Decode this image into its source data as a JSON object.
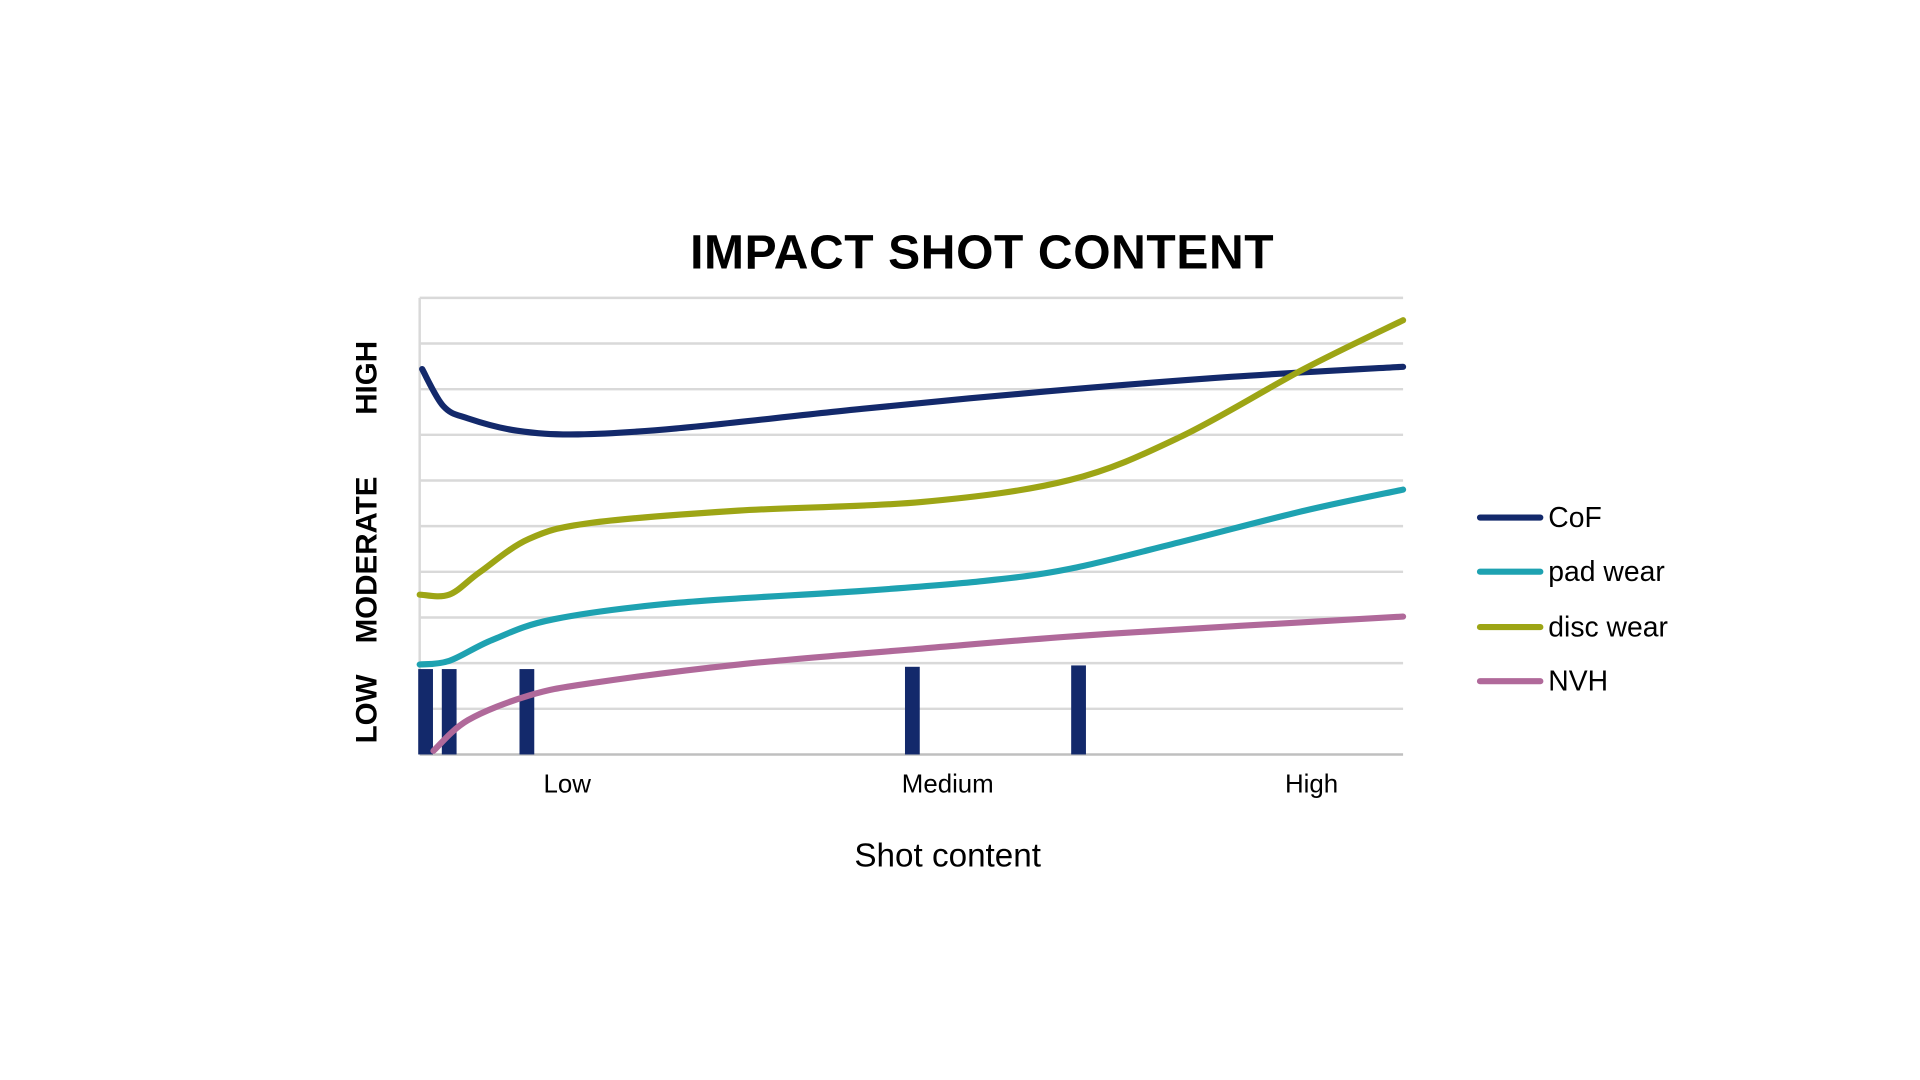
{
  "chart_data": {
    "type": "line",
    "title": "IMPACT SHOT CONTENT",
    "xlabel": "Shot content",
    "ylabel": "",
    "x_ticks": [
      {
        "label": "Low",
        "x": 15
      },
      {
        "label": "Medium",
        "x": 53.7
      },
      {
        "label": "High",
        "x": 90.7
      }
    ],
    "y_categories": [
      {
        "label": "LOW",
        "from": 0,
        "to": 2
      },
      {
        "label": "MODERATE",
        "from": 2,
        "to": 6.5
      },
      {
        "label": "HIGH",
        "from": 6.5,
        "to": 10
      }
    ],
    "xlim": [
      0,
      100
    ],
    "ylim": [
      0,
      10
    ],
    "grid": true,
    "gridline_count": 10,
    "legend_position": "right",
    "series": [
      {
        "name": "CoF",
        "color": "#13296b",
        "x": [
          0.25,
          2.4,
          4.9,
          9.9,
          16.1,
          26.1,
          45,
          63.7,
          82.5,
          100
        ],
        "y": [
          8.44,
          7.63,
          7.36,
          7.09,
          7.01,
          7.14,
          7.57,
          7.95,
          8.27,
          8.49
        ]
      },
      {
        "name": "pad wear",
        "color": "#1ea2b1",
        "x": [
          0,
          3,
          7.4,
          13.6,
          26.2,
          44.9,
          57.4,
          66.2,
          77.5,
          90,
          100
        ],
        "y": [
          1.97,
          2.05,
          2.51,
          2.96,
          3.32,
          3.58,
          3.8,
          4.07,
          4.66,
          5.34,
          5.8
        ]
      },
      {
        "name": "disc wear",
        "color": "#9da515",
        "x": [
          0,
          3,
          6.1,
          11.1,
          17.4,
          32.4,
          51.1,
          66.1,
          77.3,
          89.9,
          100
        ],
        "y": [
          3.5,
          3.5,
          3.99,
          4.72,
          5.07,
          5.34,
          5.53,
          6.01,
          6.95,
          8.44,
          9.51
        ]
      },
      {
        "name": "NVH",
        "color": "#b0699a",
        "x": [
          1.4,
          4.9,
          11.1,
          17.4,
          32.4,
          51.1,
          69.9,
          100
        ],
        "y": [
          0.08,
          0.75,
          1.29,
          1.56,
          1.97,
          2.32,
          2.64,
          3.02
        ]
      }
    ],
    "markers": {
      "color": "#13296b",
      "x": [
        0.6,
        3,
        10.9,
        50.1,
        67
      ],
      "height": [
        1.87,
        1.87,
        1.87,
        1.92,
        1.95
      ]
    }
  }
}
